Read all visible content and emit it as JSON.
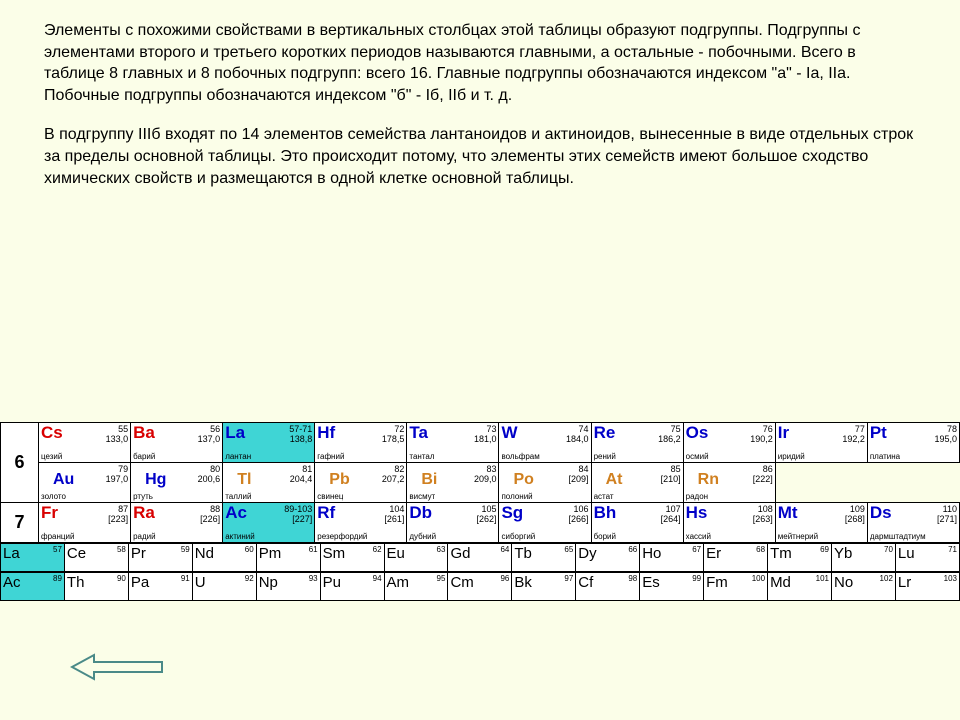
{
  "paragraphs": {
    "p1": "Элементы с похожими свойствами в вертикальных столбцах этой таблицы образуют подгруппы. Подгруппы с элементами второго и третьего коротких периодов называются главными, а остальные - побочными. Всего в таблице 8 главных и 8 побочных подгрупп: всего 16. Главные подгруппы обозначаются индексом \"а\" - Iа, IIа. Побочные подгруппы обозначаются индексом \"б\" - Iб, IIб и т. д.",
    "p2": "В подгруппу IIIб входят по 14 элементов семейства лантаноидов и актиноидов, вынесенные в виде отдельных строк за пределы основной таблицы. Это происходит потому, что элементы этих семейств имеют большое сходство химических свойств и размещаются в одной клетке основной таблицы."
  },
  "periods": {
    "6": "6",
    "7": "7"
  },
  "row6a": [
    {
      "sym": "Cs",
      "num": "55",
      "mass": "133,0",
      "name": "цезий",
      "color": "red"
    },
    {
      "sym": "Ba",
      "num": "56",
      "mass": "137,0",
      "name": "барий",
      "color": "red"
    },
    {
      "sym": "La",
      "num": "57-71",
      "mass": "138,8",
      "name": "лантан",
      "color": "blue",
      "bg": "cyan"
    },
    {
      "sym": "Hf",
      "num": "72",
      "mass": "178,5",
      "name": "гафний",
      "color": "blue"
    },
    {
      "sym": "Ta",
      "num": "73",
      "mass": "181,0",
      "name": "тантал",
      "color": "blue"
    },
    {
      "sym": "W",
      "num": "74",
      "mass": "184,0",
      "name": "вольфрам",
      "color": "blue"
    },
    {
      "sym": "Re",
      "num": "75",
      "mass": "186,2",
      "name": "рений",
      "color": "blue"
    },
    {
      "sym": "Os",
      "num": "76",
      "mass": "190,2",
      "name": "осмий",
      "color": "blue"
    },
    {
      "sym": "Ir",
      "num": "77",
      "mass": "192,2",
      "name": "иридий",
      "color": "blue"
    },
    {
      "sym": "Pt",
      "num": "78",
      "mass": "195,0",
      "name": "платина",
      "color": "blue"
    }
  ],
  "row6b": [
    {
      "sym": "Au",
      "num": "79",
      "mass": "197,0",
      "name": "золото",
      "color": "blue"
    },
    {
      "sym": "Hg",
      "num": "80",
      "mass": "200,6",
      "name": "ртуть",
      "color": "blue"
    },
    {
      "sym": "Tl",
      "num": "81",
      "mass": "204,4",
      "name": "таллий",
      "color": "orange"
    },
    {
      "sym": "Pb",
      "num": "82",
      "mass": "207,2",
      "name": "свинец",
      "color": "orange"
    },
    {
      "sym": "Bi",
      "num": "83",
      "mass": "209,0",
      "name": "висмут",
      "color": "orange"
    },
    {
      "sym": "Po",
      "num": "84",
      "mass": "[209]",
      "name": "полоний",
      "color": "orange"
    },
    {
      "sym": "At",
      "num": "85",
      "mass": "[210]",
      "name": "астат",
      "color": "orange"
    },
    {
      "sym": "Rn",
      "num": "86",
      "mass": "[222]",
      "name": "радон",
      "color": "orange"
    }
  ],
  "row7": [
    {
      "sym": "Fr",
      "num": "87",
      "mass": "[223]",
      "name": "франций",
      "color": "red"
    },
    {
      "sym": "Ra",
      "num": "88",
      "mass": "[226]",
      "name": "радий",
      "color": "red"
    },
    {
      "sym": "Ac",
      "num": "89-103",
      "mass": "[227]",
      "name": "актиний",
      "color": "blue",
      "bg": "cyan"
    },
    {
      "sym": "Rf",
      "num": "104",
      "mass": "[261]",
      "name": "резерфордий",
      "color": "blue"
    },
    {
      "sym": "Db",
      "num": "105",
      "mass": "[262]",
      "name": "дубний",
      "color": "blue"
    },
    {
      "sym": "Sg",
      "num": "106",
      "mass": "[266]",
      "name": "сиборгий",
      "color": "blue"
    },
    {
      "sym": "Bh",
      "num": "107",
      "mass": "[264]",
      "name": "борий",
      "color": "blue"
    },
    {
      "sym": "Hs",
      "num": "108",
      "mass": "[263]",
      "name": "хассий",
      "color": "blue"
    },
    {
      "sym": "Mt",
      "num": "109",
      "mass": "[268]",
      "name": "мейтнерий",
      "color": "blue"
    },
    {
      "sym": "Ds",
      "num": "110",
      "mass": "[271]",
      "name": "дармштадтиум",
      "color": "blue"
    }
  ],
  "lanth": [
    {
      "sym": "La",
      "num": "57",
      "bg": "cyan"
    },
    {
      "sym": "Ce",
      "num": "58"
    },
    {
      "sym": "Pr",
      "num": "59"
    },
    {
      "sym": "Nd",
      "num": "60"
    },
    {
      "sym": "Pm",
      "num": "61"
    },
    {
      "sym": "Sm",
      "num": "62"
    },
    {
      "sym": "Eu",
      "num": "63"
    },
    {
      "sym": "Gd",
      "num": "64"
    },
    {
      "sym": "Tb",
      "num": "65"
    },
    {
      "sym": "Dy",
      "num": "66"
    },
    {
      "sym": "Ho",
      "num": "67"
    },
    {
      "sym": "Er",
      "num": "68"
    },
    {
      "sym": "Tm",
      "num": "69"
    },
    {
      "sym": "Yb",
      "num": "70"
    },
    {
      "sym": "Lu",
      "num": "71"
    }
  ],
  "actin": [
    {
      "sym": "Ac",
      "num": "89",
      "bg": "cyan"
    },
    {
      "sym": "Th",
      "num": "90"
    },
    {
      "sym": "Pa",
      "num": "91"
    },
    {
      "sym": "U",
      "num": "92"
    },
    {
      "sym": "Np",
      "num": "93"
    },
    {
      "sym": "Pu",
      "num": "94"
    },
    {
      "sym": "Am",
      "num": "95"
    },
    {
      "sym": "Cm",
      "num": "96"
    },
    {
      "sym": "Bk",
      "num": "97"
    },
    {
      "sym": "Cf",
      "num": "98"
    },
    {
      "sym": "Es",
      "num": "99"
    },
    {
      "sym": "Fm",
      "num": "100"
    },
    {
      "sym": "Md",
      "num": "101"
    },
    {
      "sym": "No",
      "num": "102"
    },
    {
      "sym": "Lr",
      "num": "103"
    }
  ],
  "colors": {
    "page_bg": "#fbfee8",
    "table_bg": "#ffffff",
    "highlight_bg": "#3fd5d5",
    "sym_red": "#d80000",
    "sym_blue": "#0000c8",
    "sym_orange": "#d08020",
    "arrow": "#4a8a88"
  }
}
